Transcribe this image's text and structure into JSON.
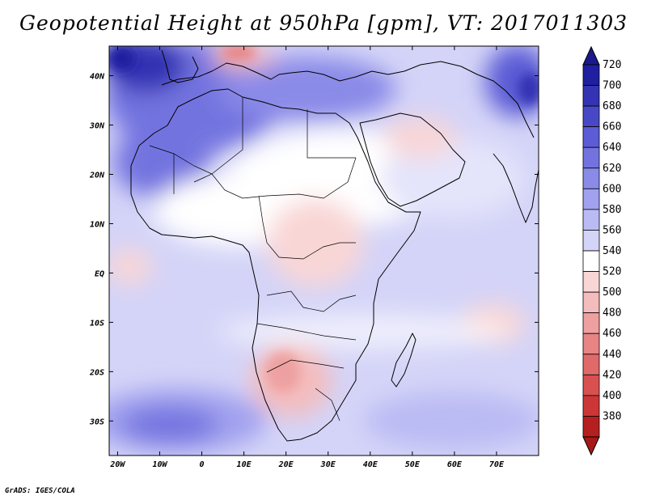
{
  "title": "Geopotential Height at 950hPa [gpm], VT: 2017011303",
  "credit": "GrADS: IGES/COLA",
  "map": {
    "lon_range": [
      -22,
      80
    ],
    "lat_range": [
      -37,
      46
    ],
    "x_ticks": [
      {
        "value": -20,
        "label": "20W"
      },
      {
        "value": -10,
        "label": "10W"
      },
      {
        "value": 0,
        "label": "0"
      },
      {
        "value": 10,
        "label": "10E"
      },
      {
        "value": 20,
        "label": "20E"
      },
      {
        "value": 30,
        "label": "30E"
      },
      {
        "value": 40,
        "label": "40E"
      },
      {
        "value": 50,
        "label": "50E"
      },
      {
        "value": 60,
        "label": "60E"
      },
      {
        "value": 70,
        "label": "70E"
      }
    ],
    "y_ticks": [
      {
        "value": 40,
        "label": "40N"
      },
      {
        "value": 30,
        "label": "30N"
      },
      {
        "value": 20,
        "label": "20N"
      },
      {
        "value": 10,
        "label": "10N"
      },
      {
        "value": 0,
        "label": "EQ"
      },
      {
        "value": -10,
        "label": "10S"
      },
      {
        "value": -20,
        "label": "20S"
      },
      {
        "value": -30,
        "label": "30S"
      }
    ]
  },
  "colorbar": {
    "labels": [
      "720",
      "700",
      "680",
      "660",
      "640",
      "620",
      "600",
      "580",
      "560",
      "540",
      "520",
      "500",
      "480",
      "460",
      "440",
      "420",
      "400",
      "380"
    ],
    "colors": [
      "#1f1f9f",
      "#3333b3",
      "#4848c7",
      "#5c5cd6",
      "#7373e0",
      "#8a8ae8",
      "#a1a1ef",
      "#bbbbf4",
      "#d4d4f8",
      "#ffffff",
      "#f9d6d6",
      "#f4bcbc",
      "#eea0a0",
      "#e88484",
      "#e06a6a",
      "#d85050",
      "#cc3636",
      "#b51f1f"
    ],
    "top_color": "#1a1a8c",
    "bottom_color": "#a81818"
  }
}
